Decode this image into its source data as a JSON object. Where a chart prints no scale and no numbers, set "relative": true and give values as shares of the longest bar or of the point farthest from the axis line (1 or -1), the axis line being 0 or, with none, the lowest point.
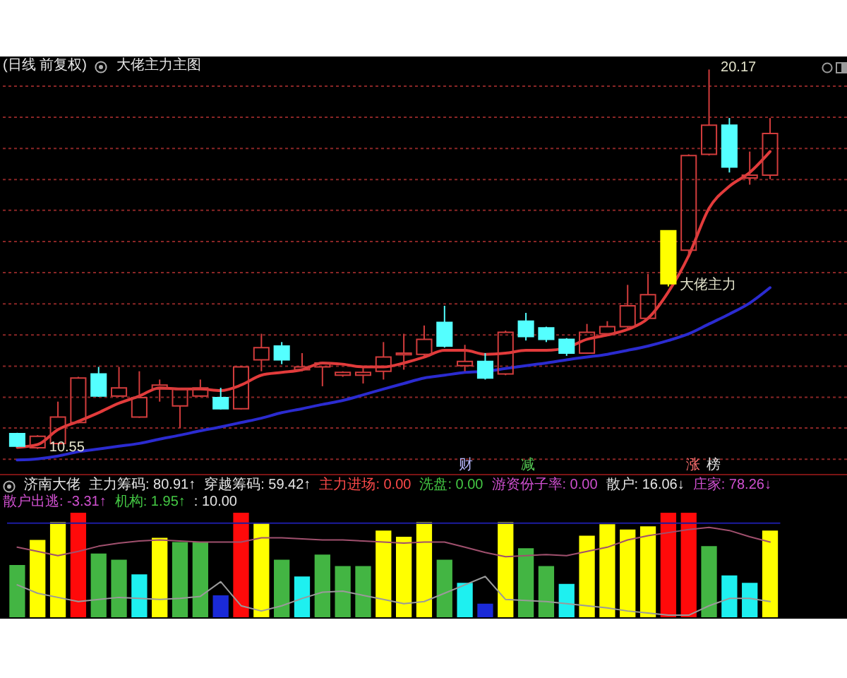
{
  "chart_data": [
    {
      "type": "candlestick",
      "title": "(日线 前复权)",
      "subtitle": "大佬主力主图",
      "categories": [
        null,
        null,
        null,
        null,
        null,
        null,
        null,
        null,
        null,
        null,
        null,
        null,
        null,
        null,
        null,
        null,
        null,
        null,
        null,
        null,
        null,
        null,
        null,
        null,
        null,
        null,
        null,
        null,
        null,
        null,
        null,
        null,
        null,
        null,
        null,
        null,
        null,
        null
      ],
      "ohlc": [
        [
          10.94,
          10.96,
          10.6,
          10.62
        ],
        [
          10.58,
          10.9,
          10.55,
          10.87
        ],
        [
          10.69,
          11.75,
          10.66,
          11.36
        ],
        [
          11.22,
          12.38,
          11.2,
          12.35
        ],
        [
          12.45,
          12.63,
          11.87,
          11.89
        ],
        [
          11.89,
          12.63,
          11.87,
          12.1
        ],
        [
          11.36,
          12.52,
          11.34,
          11.85
        ],
        [
          12.07,
          12.31,
          11.75,
          12.17
        ],
        [
          11.64,
          12.1,
          11.08,
          12.07
        ],
        [
          11.89,
          12.31,
          11.87,
          12.1
        ],
        [
          11.85,
          12.1,
          11.55,
          11.57
        ],
        [
          11.57,
          12.66,
          11.55,
          12.63
        ],
        [
          12.81,
          13.47,
          12.52,
          13.12
        ],
        [
          13.16,
          13.26,
          12.7,
          12.81
        ],
        [
          12.56,
          12.98,
          12.52,
          12.63
        ],
        [
          12.63,
          12.76,
          12.14,
          12.73
        ],
        [
          12.42,
          12.52,
          12.38,
          12.49
        ],
        [
          12.42,
          12.63,
          12.21,
          12.49
        ],
        [
          12.52,
          13.26,
          12.31,
          12.88
        ],
        [
          12.94,
          13.47,
          12.56,
          12.98
        ],
        [
          12.95,
          13.68,
          12.91,
          13.33
        ],
        [
          13.76,
          14.18,
          13.12,
          13.16
        ],
        [
          12.66,
          13.19,
          12.52,
          12.77
        ],
        [
          12.77,
          12.98,
          12.31,
          12.35
        ],
        [
          12.45,
          13.55,
          12.42,
          13.51
        ],
        [
          13.79,
          14.0,
          13.3,
          13.4
        ],
        [
          13.62,
          13.65,
          13.26,
          13.33
        ],
        [
          13.33,
          13.36,
          12.91,
          12.98
        ],
        [
          12.98,
          13.72,
          12.96,
          13.51
        ],
        [
          13.47,
          13.79,
          13.44,
          13.65
        ],
        [
          13.65,
          14.71,
          13.62,
          14.18
        ],
        [
          13.86,
          14.99,
          13.83,
          14.46
        ],
        [
          14.74,
          16.08,
          14.67,
          16.08
        ],
        [
          15.59,
          18.02,
          15.45,
          17.99
        ],
        [
          18.02,
          20.17,
          17.99,
          18.76
        ],
        [
          18.76,
          18.94,
          17.56,
          17.7
        ],
        [
          17.42,
          18.09,
          17.25,
          17.49
        ],
        [
          17.49,
          18.94,
          17.39,
          18.55
        ]
      ],
      "colors": [
        "#54ffff",
        "#d23c3c",
        "#d23c3c",
        "#d23c3c",
        "#54ffff",
        "#d23c3c",
        "#d23c3c",
        "#d23c3c",
        "#d23c3c",
        "#d23c3c",
        "#54ffff",
        "#d23c3c",
        "#d23c3c",
        "#54ffff",
        "#d23c3c",
        "#d23c3c",
        "#d23c3c",
        "#d23c3c",
        "#d23c3c",
        "#d23c3c",
        "#d23c3c",
        "#54ffff",
        "#d23c3c",
        "#54ffff",
        "#d23c3c",
        "#54ffff",
        "#54ffff",
        "#54ffff",
        "#d23c3c",
        "#d23c3c",
        "#d23c3c",
        "#d23c3c",
        "#ffff00",
        "#d23c3c",
        "#d23c3c",
        "#54ffff",
        "#d23c3c",
        "#d23c3c"
      ],
      "series": [
        {
          "type": "line",
          "color": "#e23b3b",
          "values": [
            10.59,
            10.66,
            11.04,
            11.25,
            11.47,
            11.71,
            11.89,
            12.1,
            12.07,
            12.07,
            12.03,
            12.17,
            12.42,
            12.49,
            12.56,
            12.73,
            12.7,
            12.63,
            12.63,
            12.73,
            12.88,
            13.05,
            13.05,
            12.95,
            12.98,
            13.05,
            13.05,
            13.12,
            13.33,
            13.44,
            13.58,
            13.86,
            14.53,
            15.45,
            16.65,
            17.21,
            17.56,
            18.09
          ]
        },
        {
          "type": "line",
          "color": "#2b2bd0",
          "values": [
            10.27,
            10.3,
            10.37,
            10.48,
            10.55,
            10.62,
            10.69,
            10.8,
            10.9,
            11.01,
            11.11,
            11.22,
            11.33,
            11.47,
            11.57,
            11.68,
            11.78,
            11.92,
            12.07,
            12.21,
            12.35,
            12.42,
            12.49,
            12.52,
            12.59,
            12.66,
            12.73,
            12.81,
            12.88,
            12.95,
            13.05,
            13.16,
            13.3,
            13.47,
            13.72,
            13.97,
            14.25,
            14.64
          ]
        }
      ],
      "ylim": [
        9.9,
        20.5
      ],
      "yticks": [
        {
          "value": 10.29,
          "label": null
        },
        {
          "value": 11.08,
          "label": null
        },
        {
          "value": 11.86,
          "label": null
        },
        {
          "value": 12.65,
          "label": null
        },
        {
          "value": 13.44,
          "label": null
        },
        {
          "value": 14.23,
          "label": null
        },
        {
          "value": 15.02,
          "label": null
        },
        {
          "value": 15.81,
          "label": null
        },
        {
          "value": 16.6,
          "label": null
        },
        {
          "value": 17.38,
          "label": null
        },
        {
          "value": 18.17,
          "label": null
        },
        {
          "value": 18.96,
          "label": null
        },
        {
          "value": 19.75,
          "label": null
        }
      ],
      "grid": "y",
      "annotations": [
        {
          "text": "10.55",
          "y": 10.55
        },
        "20.17",
        "大佬主力"
      ]
    },
    {
      "type": "bar",
      "title": "济南大佬",
      "relative": true,
      "categories": [
        null,
        null,
        null,
        null,
        null,
        null,
        null,
        null,
        null,
        null,
        null,
        null,
        null,
        null,
        null,
        null,
        null,
        null,
        null,
        null,
        null,
        null,
        null,
        null,
        null,
        null,
        null,
        null,
        null,
        null,
        null,
        null,
        null,
        null,
        null,
        null,
        null,
        null
      ],
      "series": [
        {
          "type": "bar",
          "colors": [
            "#43b543",
            "#ffff00",
            "#ffff00",
            "#ff0a0a",
            "#43b543",
            "#43b543",
            "#1ef0f0",
            "#ffff00",
            "#43b543",
            "#43b543",
            "#1a2ad8",
            "#ff0a0a",
            "#ffff00",
            "#43b543",
            "#1ef0f0",
            "#43b543",
            "#43b543",
            "#43b543",
            "#ffff00",
            "#ffff00",
            "#ffff00",
            "#43b543",
            "#1ef0f0",
            "#1a2ad8",
            "#ffff00",
            "#43b543",
            "#43b543",
            "#1ef0f0",
            "#ffff00",
            "#ffff00",
            "#ffff00",
            "#ffff00",
            "#ff0a0a",
            "#ff0a0a",
            "#43b543",
            "#1ef0f0",
            "#1ef0f0",
            "#ffff00"
          ],
          "values": [
            0.5,
            0.74,
            0.91,
            1,
            0.61,
            0.55,
            0.41,
            0.76,
            0.72,
            0.72,
            0.21,
            1,
            0.9,
            0.55,
            0.39,
            0.6,
            0.49,
            0.49,
            0.83,
            0.77,
            0.91,
            0.55,
            0.33,
            0.13,
            0.91,
            0.66,
            0.49,
            0.32,
            0.78,
            0.89,
            0.84,
            0.87,
            1,
            1,
            0.68,
            0.4,
            0.33,
            0.83
          ]
        },
        {
          "type": "line",
          "color": "#a0506e",
          "values": [
            0.67,
            0.63,
            0.59,
            0.63,
            0.68,
            0.71,
            0.73,
            0.74,
            0.73,
            0.72,
            0.72,
            0.72,
            0.76,
            0.76,
            0.75,
            0.74,
            0.74,
            0.73,
            0.72,
            0.71,
            0.72,
            0.72,
            0.67,
            0.62,
            0.58,
            0.59,
            0.6,
            0.59,
            0.63,
            0.67,
            0.74,
            0.78,
            0.81,
            0.84,
            0.86,
            0.83,
            0.77,
            0.72
          ]
        },
        {
          "type": "line",
          "color": "#9a9a9a",
          "values": [
            0.31,
            0.23,
            0.19,
            0.15,
            0.17,
            0.19,
            0.18,
            0.17,
            0.18,
            0.2,
            0.34,
            0.11,
            0.06,
            0.11,
            0.18,
            0.24,
            0.25,
            0.21,
            0.17,
            0.13,
            0.15,
            0.23,
            0.31,
            0.39,
            0.17,
            0.16,
            0.15,
            0.13,
            0.11,
            0.09,
            0.06,
            0.04,
            0.02,
            0.02,
            0.11,
            0.18,
            0.18,
            0.15
          ]
        }
      ],
      "ref_lines": [
        {
          "axis": "y",
          "value": 0.9,
          "color": "#1c1ca0"
        }
      ],
      "annotations": [
        "主力筹码: 80.91↑",
        "穿越筹码: 59.42↑",
        "主力进场: 0.00",
        "洗盘: 0.00",
        "游资份子率: 0.00",
        "散户: 16.06↓",
        "庄家: 78.26↓",
        "散户出逃: -3.31↑",
        "机构: 1.95↑",
        ": 10.00",
        "财",
        "减",
        "涨",
        "榜"
      ]
    }
  ]
}
